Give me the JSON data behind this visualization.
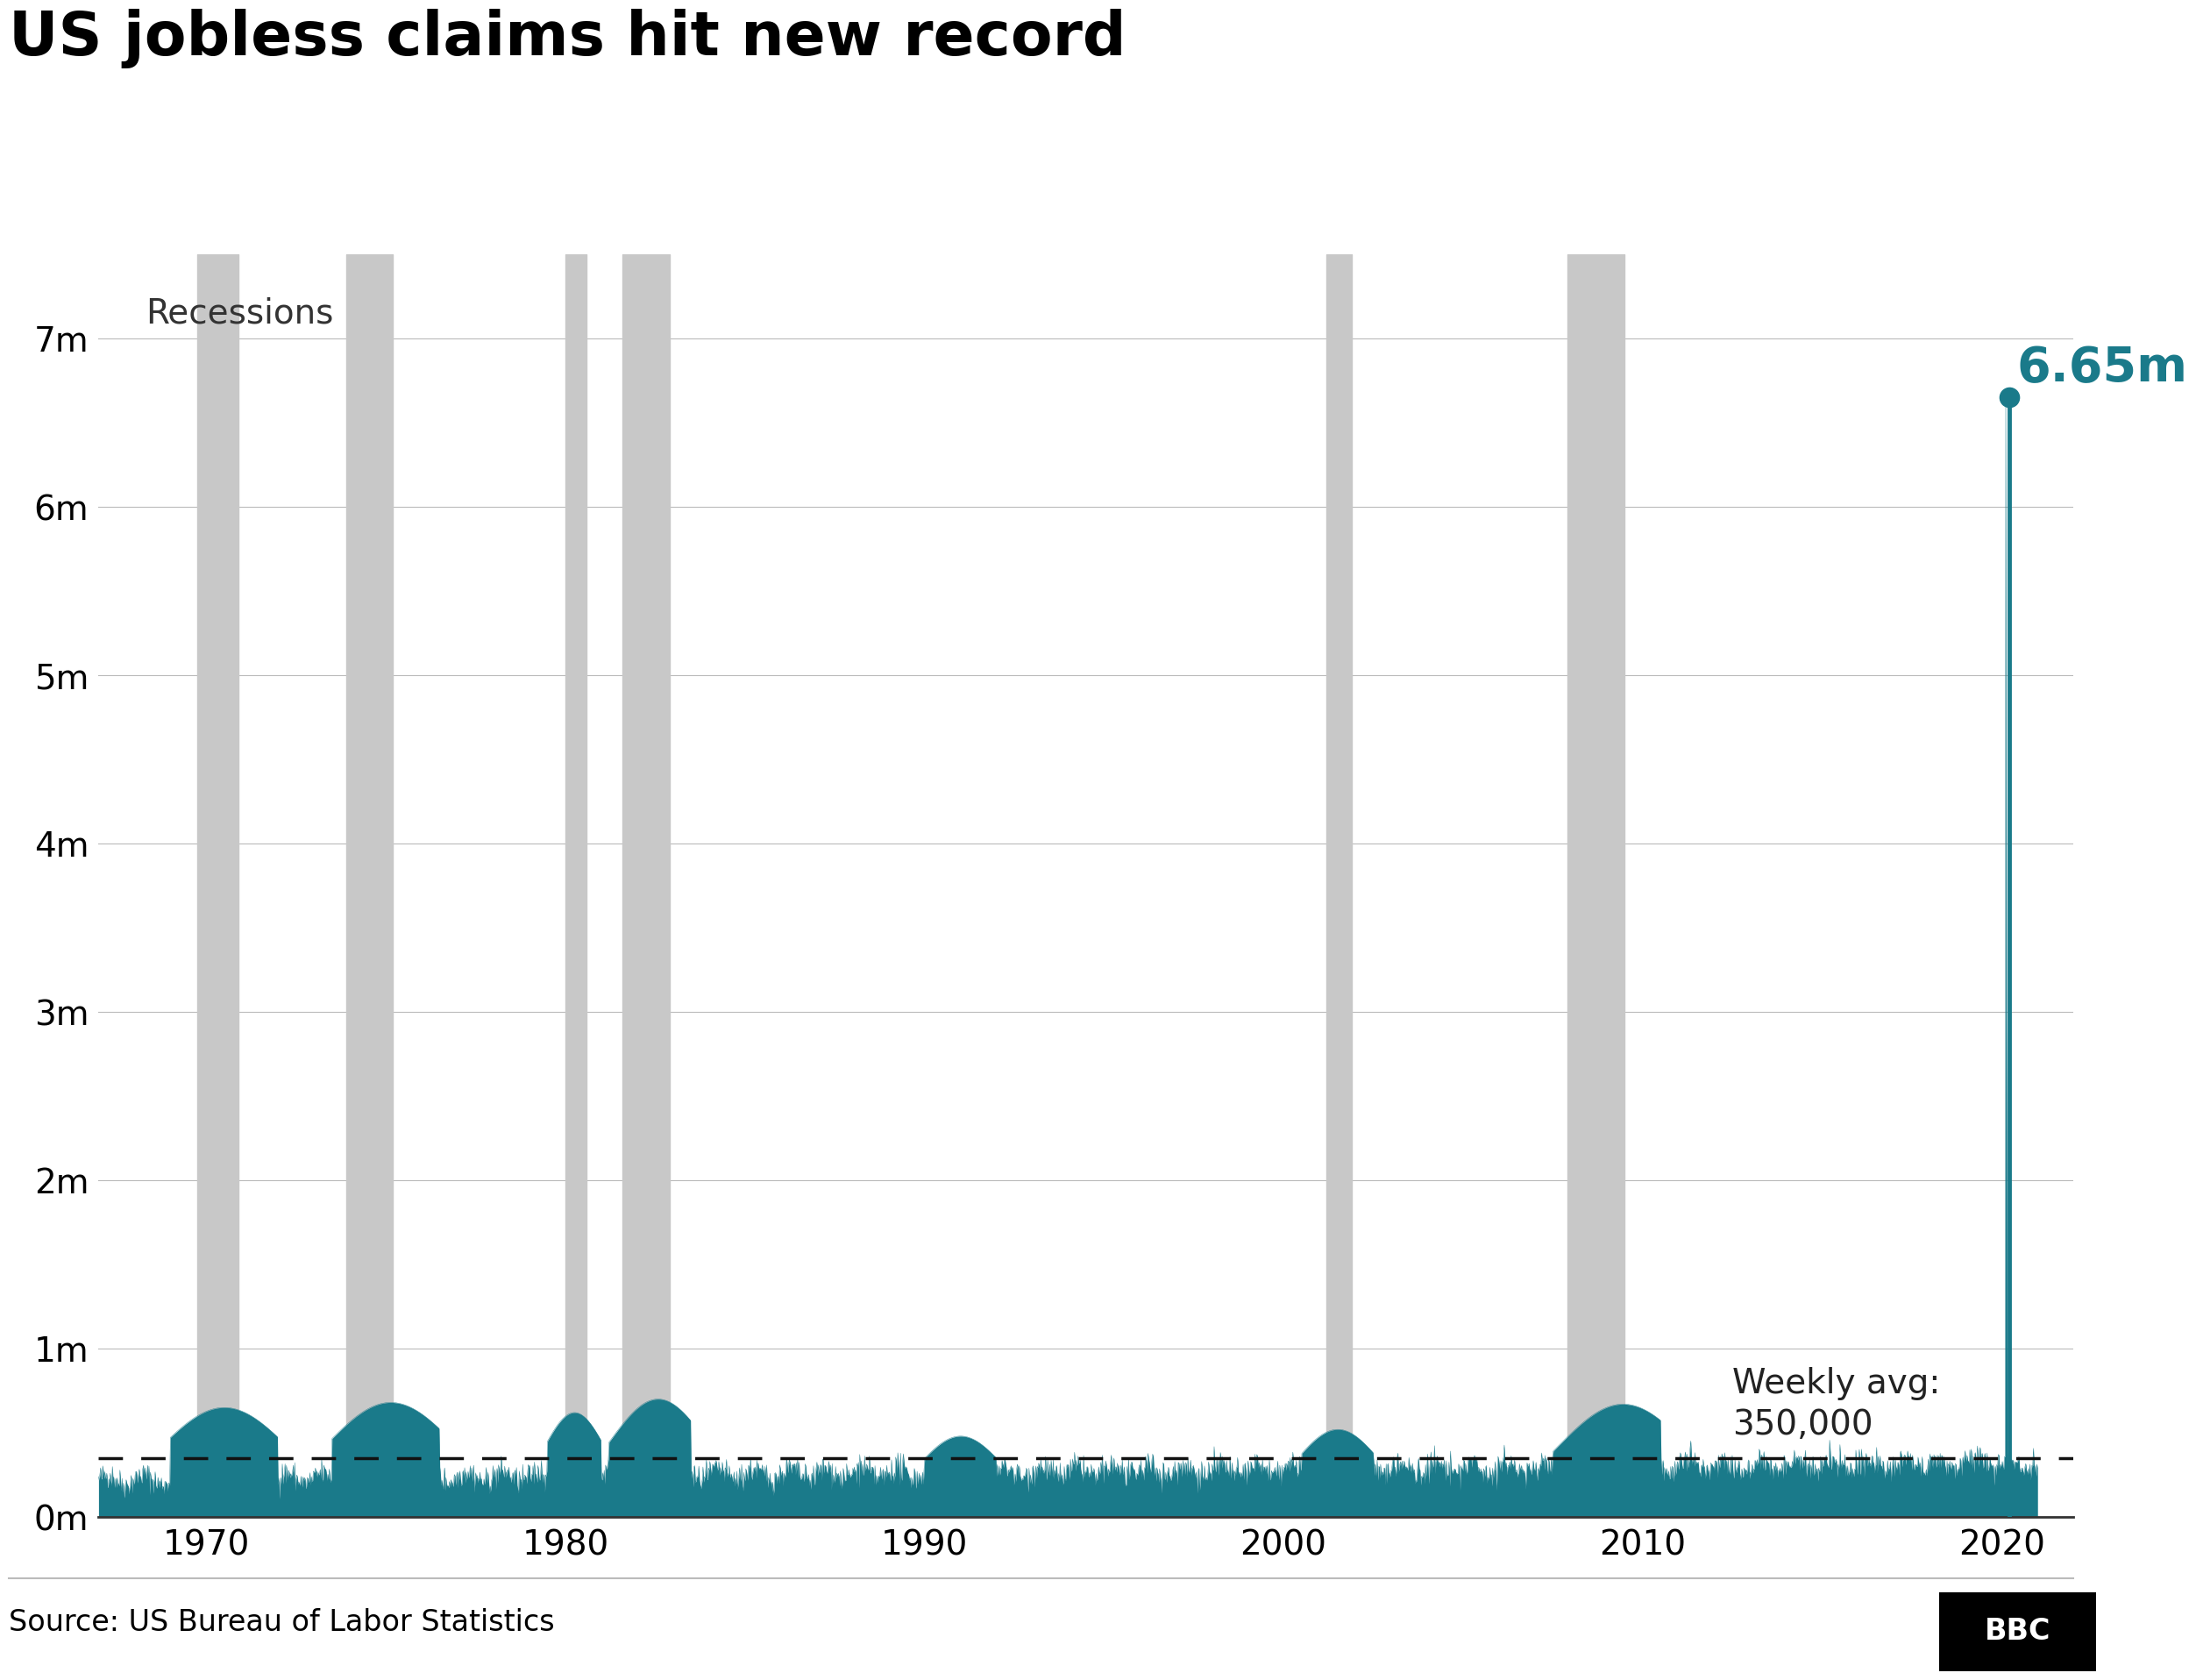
{
  "title": "US jobless claims hit new record",
  "source": "Source: US Bureau of Labor Statistics",
  "bbc_logo": "BBC",
  "recession_label": "Recessions",
  "weekly_avg_label": "Weekly avg:\n350,000",
  "peak_label": "6.65m",
  "peak_value": 6650000,
  "weekly_avg": 350000,
  "y_ticks": [
    0,
    1000000,
    2000000,
    3000000,
    4000000,
    5000000,
    6000000,
    7000000
  ],
  "y_tick_labels": [
    "0m",
    "1m",
    "2m",
    "3m",
    "4m",
    "5m",
    "6m",
    "7m"
  ],
  "x_start_year": 1967,
  "x_end_year": 2021,
  "x_ticks": [
    1970,
    1980,
    1990,
    2000,
    2010,
    2020
  ],
  "recession_periods": [
    [
      1969.75,
      1970.9
    ],
    [
      1973.9,
      1975.2
    ],
    [
      1980.0,
      1980.6
    ],
    [
      1981.6,
      1982.9
    ],
    [
      2001.2,
      2001.9
    ],
    [
      2007.9,
      2009.5
    ]
  ],
  "teal_color": "#1a7a8a",
  "recession_color": "#c8c8c8",
  "avg_line_color": "#111111",
  "background_color": "#ffffff",
  "title_fontsize": 50,
  "label_fontsize": 28,
  "tick_fontsize": 28,
  "source_fontsize": 24
}
